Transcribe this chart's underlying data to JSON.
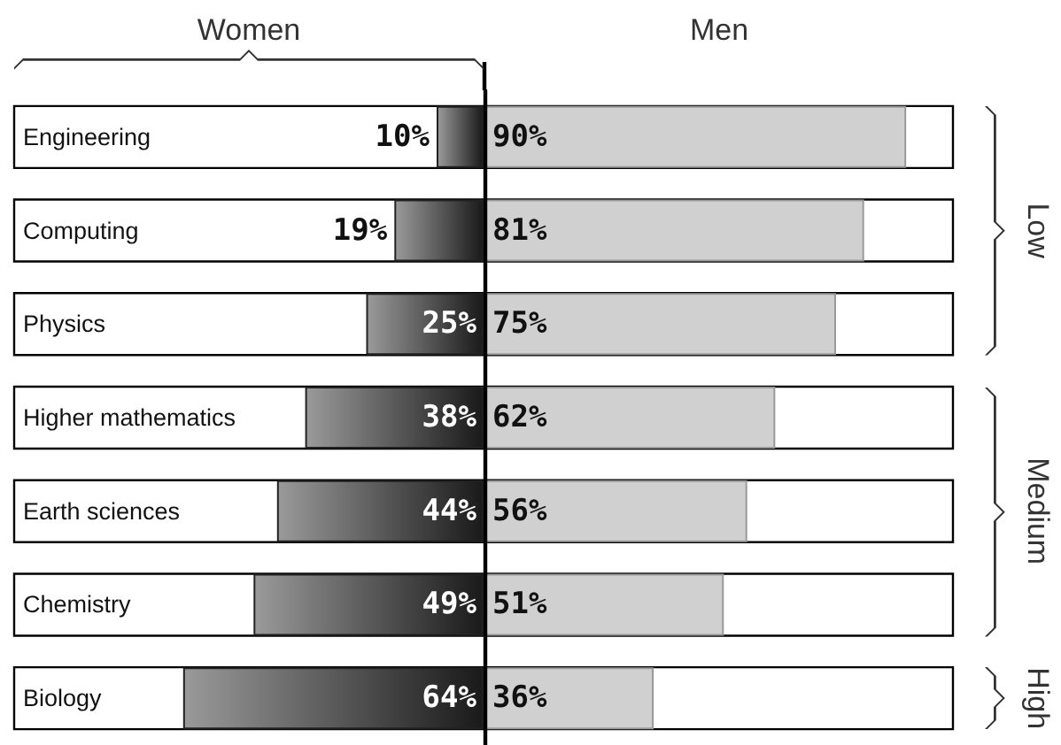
{
  "chart_data": [
    {
      "type": "bar",
      "orientation": "horizontal",
      "categories": [
        "Engineering",
        "Computing",
        "Physics",
        "Higher mathematics",
        "Earth sciences",
        "Chemistry",
        "Biology"
      ],
      "xlim": [
        100,
        0
      ],
      "tick_labels": "y",
      "series": [
        {
          "name": "Women",
          "color": "#1a1a1a",
          "values": [
            10,
            19,
            25,
            38,
            44,
            49,
            64
          ],
          "value_labels": [
            "10%",
            "19%",
            "25%",
            "38%",
            "44%",
            "49%",
            "64%"
          ]
        }
      ],
      "legend": false
    },
    {
      "type": "bar",
      "orientation": "horizontal",
      "categories": [
        null,
        null,
        null,
        null,
        null,
        null,
        null
      ],
      "xlim": [
        0,
        100
      ],
      "tick_labels": false,
      "series": [
        {
          "name": "Men",
          "color": "#d0d0d0",
          "values": [
            90,
            81,
            75,
            62,
            56,
            51,
            36
          ],
          "value_labels": [
            "90%",
            "81%",
            "75%",
            "62%",
            "56%",
            "51%",
            "36%"
          ]
        }
      ],
      "annotations": [
        "Low",
        "Medium",
        "High"
      ],
      "legend": false
    }
  ]
}
